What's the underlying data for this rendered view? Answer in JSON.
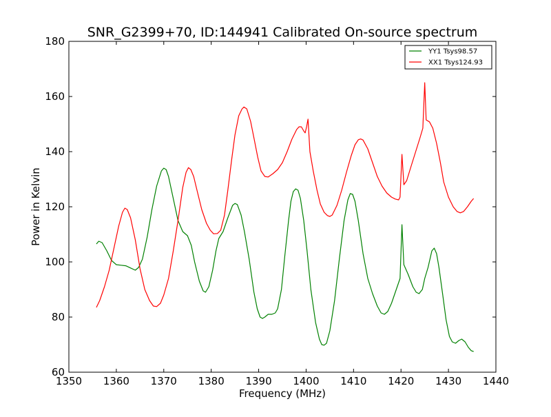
{
  "chart_data": {
    "type": "line",
    "title": "SNR_G2399+70, ID:144941 Calibrated On-source spectrum",
    "xlabel": "Frequency (MHz)",
    "ylabel": "Power in Kelvin",
    "xlim": [
      1350,
      1440
    ],
    "ylim": [
      60,
      180
    ],
    "xticks": [
      1350,
      1360,
      1370,
      1380,
      1390,
      1400,
      1410,
      1420,
      1430,
      1440
    ],
    "yticks": [
      60,
      80,
      100,
      120,
      140,
      160,
      180
    ],
    "grid": false,
    "legend_position": "top-right",
    "series": [
      {
        "name": "YY1 Tsys98.57",
        "color": "#008000",
        "points": [
          [
            1355.8,
            106.5
          ],
          [
            1356.3,
            107.5
          ],
          [
            1357,
            107
          ],
          [
            1358,
            104
          ],
          [
            1359,
            100.5
          ],
          [
            1360,
            99
          ],
          [
            1361,
            98.8
          ],
          [
            1362,
            98.6
          ],
          [
            1363,
            97.8
          ],
          [
            1364,
            97
          ],
          [
            1364.7,
            98
          ],
          [
            1365.5,
            101
          ],
          [
            1366.5,
            109
          ],
          [
            1367.5,
            119
          ],
          [
            1368.5,
            127.5
          ],
          [
            1369.5,
            133
          ],
          [
            1370,
            134
          ],
          [
            1370.5,
            133.5
          ],
          [
            1371,
            131
          ],
          [
            1372,
            123
          ],
          [
            1373,
            115
          ],
          [
            1374,
            111
          ],
          [
            1375,
            109.5
          ],
          [
            1375.8,
            106
          ],
          [
            1376.5,
            100
          ],
          [
            1377.5,
            93
          ],
          [
            1378.3,
            89.5
          ],
          [
            1378.8,
            89
          ],
          [
            1379.5,
            91
          ],
          [
            1380.3,
            97
          ],
          [
            1381,
            104
          ],
          [
            1381.6,
            108.5
          ],
          [
            1382.5,
            111
          ],
          [
            1383.5,
            116
          ],
          [
            1384.5,
            120.5
          ],
          [
            1385,
            121.2
          ],
          [
            1385.5,
            120.8
          ],
          [
            1386.3,
            117
          ],
          [
            1387,
            111
          ],
          [
            1388,
            101
          ],
          [
            1389,
            89
          ],
          [
            1389.7,
            83
          ],
          [
            1390.3,
            80
          ],
          [
            1390.8,
            79.5
          ],
          [
            1391.3,
            80
          ],
          [
            1392,
            81
          ],
          [
            1392.8,
            81
          ],
          [
            1393.5,
            81.5
          ],
          [
            1394,
            83
          ],
          [
            1394.8,
            90
          ],
          [
            1395.5,
            102
          ],
          [
            1396.3,
            115
          ],
          [
            1396.8,
            122
          ],
          [
            1397.3,
            125.5
          ],
          [
            1397.8,
            126.5
          ],
          [
            1398.3,
            126
          ],
          [
            1398.8,
            123
          ],
          [
            1399.5,
            115
          ],
          [
            1400.2,
            104
          ],
          [
            1401,
            90
          ],
          [
            1402,
            78
          ],
          [
            1402.8,
            72
          ],
          [
            1403.3,
            70
          ],
          [
            1403.8,
            69.8
          ],
          [
            1404.3,
            70.5
          ],
          [
            1405,
            75
          ],
          [
            1406,
            86
          ],
          [
            1407,
            101
          ],
          [
            1408,
            115
          ],
          [
            1408.8,
            122.5
          ],
          [
            1409.3,
            124.8
          ],
          [
            1409.8,
            124.5
          ],
          [
            1410.3,
            122
          ],
          [
            1411,
            115
          ],
          [
            1412,
            103
          ],
          [
            1413,
            94
          ],
          [
            1414,
            88.5
          ],
          [
            1415,
            84
          ],
          [
            1415.8,
            81.5
          ],
          [
            1416.5,
            81
          ],
          [
            1417.2,
            82
          ],
          [
            1418,
            85
          ],
          [
            1419,
            90
          ],
          [
            1419.8,
            94
          ],
          [
            1420.2,
            113.5
          ],
          [
            1420.6,
            99
          ],
          [
            1421.5,
            95.5
          ],
          [
            1422.5,
            91
          ],
          [
            1423.2,
            89
          ],
          [
            1423.8,
            88.5
          ],
          [
            1424.5,
            90
          ],
          [
            1425,
            94
          ],
          [
            1425.7,
            98
          ],
          [
            1426.5,
            104
          ],
          [
            1427,
            105
          ],
          [
            1427.5,
            103
          ],
          [
            1428,
            98
          ],
          [
            1428.8,
            88
          ],
          [
            1429.5,
            79
          ],
          [
            1430.2,
            73
          ],
          [
            1430.8,
            71
          ],
          [
            1431.5,
            70.5
          ],
          [
            1432.2,
            71.5
          ],
          [
            1432.8,
            72
          ],
          [
            1433.5,
            71
          ],
          [
            1434.2,
            69
          ],
          [
            1434.8,
            67.8
          ],
          [
            1435.3,
            67.5
          ]
        ]
      },
      {
        "name": "XX1 Tsys124.93",
        "color": "#ff0000",
        "points": [
          [
            1355.8,
            83.5
          ],
          [
            1356.5,
            86
          ],
          [
            1357.5,
            91
          ],
          [
            1358.5,
            97
          ],
          [
            1359.5,
            105
          ],
          [
            1360.5,
            113
          ],
          [
            1361.3,
            118
          ],
          [
            1361.8,
            119.5
          ],
          [
            1362.3,
            119
          ],
          [
            1363,
            116
          ],
          [
            1364,
            108
          ],
          [
            1365,
            97.5
          ],
          [
            1366,
            90
          ],
          [
            1367,
            86
          ],
          [
            1367.8,
            84
          ],
          [
            1368.5,
            83.8
          ],
          [
            1369.3,
            85
          ],
          [
            1370,
            88
          ],
          [
            1371,
            94
          ],
          [
            1372,
            104
          ],
          [
            1373,
            115
          ],
          [
            1374,
            127
          ],
          [
            1374.7,
            132.5
          ],
          [
            1375.2,
            134.2
          ],
          [
            1375.7,
            133.5
          ],
          [
            1376.3,
            131
          ],
          [
            1377,
            126
          ],
          [
            1378,
            119
          ],
          [
            1379,
            114
          ],
          [
            1379.8,
            111.5
          ],
          [
            1380.5,
            110.2
          ],
          [
            1381.3,
            110.3
          ],
          [
            1382,
            111.5
          ],
          [
            1382.8,
            117
          ],
          [
            1383.5,
            126
          ],
          [
            1384.3,
            137
          ],
          [
            1385,
            146
          ],
          [
            1385.8,
            153
          ],
          [
            1386.5,
            155.5
          ],
          [
            1386.9,
            156.2
          ],
          [
            1387.5,
            155.5
          ],
          [
            1388.3,
            151
          ],
          [
            1389,
            145
          ],
          [
            1389.8,
            138
          ],
          [
            1390.5,
            133
          ],
          [
            1391.3,
            131
          ],
          [
            1392,
            130.8
          ],
          [
            1393,
            132
          ],
          [
            1394,
            133.5
          ],
          [
            1395,
            136
          ],
          [
            1396,
            140
          ],
          [
            1397,
            144.5
          ],
          [
            1398,
            148
          ],
          [
            1398.5,
            149
          ],
          [
            1399,
            149
          ],
          [
            1399.5,
            147.5
          ],
          [
            1399.8,
            146.8
          ],
          [
            1400.1,
            149
          ],
          [
            1400.4,
            151.8
          ],
          [
            1400.8,
            140
          ],
          [
            1401.5,
            133
          ],
          [
            1402.3,
            126
          ],
          [
            1403,
            121
          ],
          [
            1403.8,
            118
          ],
          [
            1404.5,
            116.8
          ],
          [
            1405,
            116.5
          ],
          [
            1405.5,
            117
          ],
          [
            1406.5,
            120.5
          ],
          [
            1407.5,
            126
          ],
          [
            1408.5,
            132.5
          ],
          [
            1409.5,
            138.5
          ],
          [
            1410.3,
            142.5
          ],
          [
            1411,
            144.3
          ],
          [
            1411.5,
            144.6
          ],
          [
            1412,
            144.2
          ],
          [
            1413,
            141
          ],
          [
            1414,
            136
          ],
          [
            1415,
            131
          ],
          [
            1416,
            127.5
          ],
          [
            1417,
            125
          ],
          [
            1418,
            123.5
          ],
          [
            1418.8,
            122.8
          ],
          [
            1419.5,
            122.5
          ],
          [
            1419.8,
            123.5
          ],
          [
            1420.2,
            139
          ],
          [
            1420.6,
            128
          ],
          [
            1421.2,
            129.5
          ],
          [
            1422,
            134
          ],
          [
            1423,
            139.5
          ],
          [
            1424,
            145
          ],
          [
            1424.6,
            148.5
          ],
          [
            1425,
            165
          ],
          [
            1425.3,
            151.5
          ],
          [
            1426,
            150.8
          ],
          [
            1426.7,
            148.5
          ],
          [
            1427.5,
            143
          ],
          [
            1428.3,
            136
          ],
          [
            1429,
            129
          ],
          [
            1430,
            123.5
          ],
          [
            1431,
            120
          ],
          [
            1431.8,
            118.3
          ],
          [
            1432.5,
            117.8
          ],
          [
            1433.2,
            118.3
          ],
          [
            1434,
            120
          ],
          [
            1434.8,
            122
          ],
          [
            1435.3,
            123
          ]
        ]
      }
    ]
  }
}
